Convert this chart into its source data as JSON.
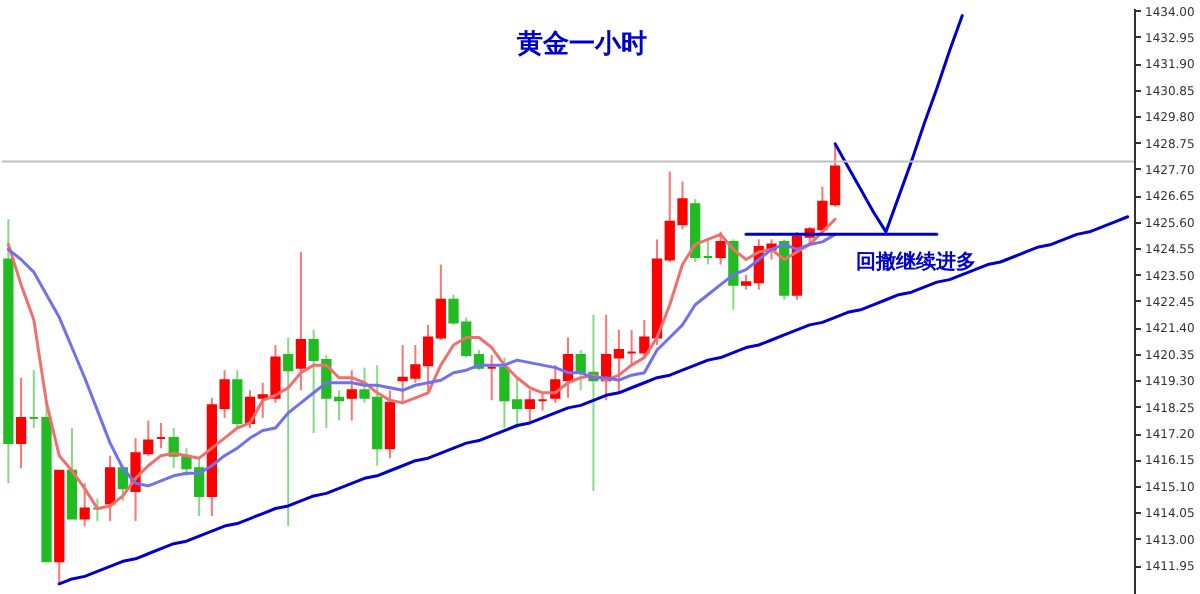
{
  "chart_data": {
    "type": "candlestick",
    "title": "黄金一小时",
    "annotations": [
      "回撤继续进多"
    ],
    "categories": [
      null,
      null,
      null,
      null,
      null,
      null,
      null,
      null,
      null,
      null,
      null,
      null,
      null,
      null,
      null,
      null,
      null,
      null,
      null,
      null,
      null,
      null,
      null,
      null,
      null,
      null,
      null,
      null,
      null,
      null,
      null,
      null,
      null,
      null,
      null,
      null,
      null,
      null,
      null,
      null,
      null,
      null,
      null,
      null,
      null,
      null,
      null,
      null,
      null,
      null,
      null,
      null,
      null,
      null,
      null,
      null,
      null,
      null,
      null,
      null,
      null,
      null,
      null,
      null,
      null,
      null,
      null,
      null,
      null,
      null,
      null,
      null,
      null,
      null,
      null,
      null,
      null,
      null,
      null,
      null,
      null,
      null,
      null,
      null,
      null,
      null,
      null,
      null,
      null
    ],
    "ohlc": [
      [
        1424.1,
        1425.7,
        1415.2,
        1416.8
      ],
      [
        1416.8,
        1419.4,
        1415.8,
        1417.8
      ],
      [
        1417.8,
        1419.7,
        1417.4,
        1417.8
      ],
      [
        1417.8,
        1418.4,
        1412.1,
        1412.1
      ],
      [
        1412.1,
        1415.7,
        1411.2,
        1415.7
      ],
      [
        1415.7,
        1417.4,
        1413.8,
        1413.8
      ],
      [
        1413.8,
        1415.2,
        1413.5,
        1414.2
      ],
      [
        1414.2,
        1414.6,
        1413.7,
        1414.2
      ],
      [
        1414.4,
        1416.3,
        1413.7,
        1415.8
      ],
      [
        1415.8,
        1415.9,
        1414.5,
        1415.0
      ],
      [
        1414.9,
        1417.0,
        1413.7,
        1416.4
      ],
      [
        1416.4,
        1417.7,
        1416.3,
        1416.9
      ],
      [
        1417.0,
        1417.6,
        1416.6,
        1417.0
      ],
      [
        1417.0,
        1417.4,
        1415.8,
        1416.3
      ],
      [
        1416.3,
        1416.6,
        1415.5,
        1415.8
      ],
      [
        1415.8,
        1416.2,
        1413.9,
        1414.7
      ],
      [
        1414.7,
        1418.6,
        1413.9,
        1418.3
      ],
      [
        1418.2,
        1419.7,
        1417.8,
        1419.3
      ],
      [
        1419.3,
        1419.7,
        1417.4,
        1417.6
      ],
      [
        1417.6,
        1418.9,
        1417.4,
        1418.6
      ],
      [
        1418.6,
        1419.2,
        1417.8,
        1418.7
      ],
      [
        1418.6,
        1420.7,
        1418.4,
        1420.2
      ],
      [
        1420.3,
        1421.0,
        1413.5,
        1419.7
      ],
      [
        1419.8,
        1424.4,
        1418.9,
        1420.9
      ],
      [
        1420.9,
        1421.3,
        1417.2,
        1420.1
      ],
      [
        1420.1,
        1420.3,
        1417.4,
        1418.6
      ],
      [
        1418.6,
        1418.9,
        1417.7,
        1418.5
      ],
      [
        1418.6,
        1419.7,
        1417.7,
        1418.9
      ],
      [
        1418.9,
        1419.8,
        1418.4,
        1418.6
      ],
      [
        1418.6,
        1419.9,
        1415.9,
        1416.6
      ],
      [
        1416.6,
        1418.9,
        1416.2,
        1418.4
      ],
      [
        1419.3,
        1420.7,
        1418.4,
        1419.4
      ],
      [
        1419.4,
        1420.7,
        1419.2,
        1419.9
      ],
      [
        1419.9,
        1421.5,
        1418.9,
        1421.0
      ],
      [
        1421.0,
        1423.9,
        1420.9,
        1422.5
      ],
      [
        1422.5,
        1422.7,
        1421.5,
        1421.6
      ],
      [
        1421.6,
        1421.8,
        1420.2,
        1420.3
      ],
      [
        1420.3,
        1420.5,
        1419.7,
        1419.8
      ],
      [
        1419.8,
        1420.3,
        1418.5,
        1419.8
      ],
      [
        1419.8,
        1420.2,
        1417.4,
        1418.5
      ],
      [
        1418.5,
        1419.4,
        1417.4,
        1418.2
      ],
      [
        1418.2,
        1418.9,
        1417.6,
        1418.5
      ],
      [
        1418.5,
        1418.8,
        1418.1,
        1418.5
      ],
      [
        1418.6,
        1419.9,
        1418.4,
        1419.3
      ],
      [
        1419.3,
        1421.0,
        1418.6,
        1420.3
      ],
      [
        1420.3,
        1420.5,
        1418.9,
        1419.6
      ],
      [
        1419.6,
        1421.9,
        1414.9,
        1419.3
      ],
      [
        1419.3,
        1421.9,
        1418.5,
        1420.3
      ],
      [
        1420.2,
        1421.3,
        1418.8,
        1420.5
      ],
      [
        1420.4,
        1421.3,
        1419.9,
        1420.4
      ],
      [
        1420.4,
        1421.7,
        1420.2,
        1421.0
      ],
      [
        1421.0,
        1424.9,
        1420.7,
        1424.1
      ],
      [
        1424.1,
        1427.6,
        1424.0,
        1425.6
      ],
      [
        1425.5,
        1427.2,
        1425.3,
        1426.5
      ],
      [
        1426.3,
        1426.5,
        1424.0,
        1424.2
      ],
      [
        1424.2,
        1424.9,
        1423.9,
        1424.2
      ],
      [
        1424.2,
        1425.2,
        1423.9,
        1424.8
      ],
      [
        1424.8,
        1424.9,
        1422.1,
        1423.1
      ],
      [
        1423.1,
        1423.5,
        1422.9,
        1423.2
      ],
      [
        1423.2,
        1424.9,
        1422.9,
        1424.6
      ],
      [
        1424.5,
        1424.9,
        1424.1,
        1424.7
      ],
      [
        1424.8,
        1424.9,
        1422.5,
        1422.7
      ],
      [
        1422.7,
        1425.2,
        1422.5,
        1425.0
      ],
      [
        1425.0,
        1425.4,
        1424.7,
        1425.3
      ],
      [
        1425.3,
        1427.0,
        1425.1,
        1426.4
      ],
      [
        1426.3,
        1428.7,
        1426.2,
        1427.8
      ],
      null,
      null,
      null,
      null,
      null,
      null,
      null,
      null,
      null,
      null,
      null,
      null,
      null,
      null,
      null,
      null,
      null,
      null,
      null,
      null,
      null,
      null,
      null
    ],
    "colors": [
      "#22bb22",
      "#ff0000",
      "#22bb22",
      "#22bb22",
      "#ff0000",
      "#22bb22",
      "#ff0000",
      "#22bb22",
      "#ff0000",
      "#22bb22",
      "#ff0000",
      "#ff0000",
      "#ff0000",
      "#22bb22",
      "#22bb22",
      "#22bb22",
      "#ff0000",
      "#ff0000",
      "#22bb22",
      "#ff0000",
      "#ff0000",
      "#ff0000",
      "#22bb22",
      "#ff0000",
      "#22bb22",
      "#22bb22",
      "#22bb22",
      "#ff0000",
      "#22bb22",
      "#22bb22",
      "#ff0000",
      "#ff0000",
      "#ff0000",
      "#ff0000",
      "#ff0000",
      "#22bb22",
      "#22bb22",
      "#22bb22",
      "#ff0000",
      "#22bb22",
      "#22bb22",
      "#ff0000",
      "#ff0000",
      "#ff0000",
      "#ff0000",
      "#22bb22",
      "#22bb22",
      "#ff0000",
      "#ff0000",
      "#ff0000",
      "#ff0000",
      "#ff0000",
      "#ff0000",
      "#ff0000",
      "#22bb22",
      "#22bb22",
      "#ff0000",
      "#22bb22",
      "#ff0000",
      "#ff0000",
      "#ff0000",
      "#22bb22",
      "#ff0000",
      "#ff0000",
      "#ff0000",
      "#ff0000",
      null,
      null,
      null,
      null,
      null,
      null,
      null,
      null,
      null,
      null,
      null,
      null,
      null,
      null,
      null,
      null,
      null,
      null,
      null,
      null,
      null,
      null,
      null
    ],
    "series": [
      {
        "type": "line",
        "color": "#f07070",
        "values": [
          1424.7,
          1423.1,
          1421.7,
          1418.4,
          1416.3,
          1415.7,
          1415.0,
          1414.2,
          1414.3,
          1414.7,
          1415.4,
          1415.9,
          1416.3,
          1416.4,
          1416.3,
          1416.2,
          1416.6,
          1417.0,
          1417.4,
          1417.6,
          1418.5,
          1418.7,
          1419.0,
          1419.6,
          1419.9,
          1419.9,
          1419.4,
          1419.4,
          1419.2,
          1418.8,
          1418.5,
          1418.4,
          1418.6,
          1418.8,
          1419.9,
          1420.7,
          1421.0,
          1421.0,
          1420.6,
          1419.9,
          1419.4,
          1419.0,
          1418.8,
          1418.8,
          1419.2,
          1419.4,
          1419.5,
          1419.3,
          1419.5,
          1419.9,
          1420.2,
          1421.0,
          1422.3,
          1423.9,
          1424.7,
          1424.9,
          1425.1,
          1424.5,
          1424.1,
          1424.4,
          1424.5,
          1424.1,
          1424.4,
          1424.7,
          1425.2,
          1425.7,
          null,
          null,
          null,
          null,
          null,
          null,
          null,
          null,
          null,
          null,
          null,
          null,
          null,
          null,
          null,
          null,
          null,
          null,
          null,
          null,
          null,
          null,
          null
        ]
      },
      {
        "type": "line",
        "color": "#7070f0",
        "values": [
          1424.5,
          1424.1,
          1423.6,
          1422.7,
          1421.8,
          1420.6,
          1419.4,
          1418.1,
          1416.8,
          1415.8,
          1415.2,
          1415.1,
          1415.3,
          1415.5,
          1415.6,
          1415.6,
          1415.9,
          1416.3,
          1416.6,
          1417.0,
          1417.3,
          1417.4,
          1418.0,
          1418.4,
          1418.8,
          1419.2,
          1419.2,
          1419.2,
          1419.1,
          1419.1,
          1419.0,
          1418.9,
          1419.1,
          1419.2,
          1419.3,
          1419.6,
          1419.7,
          1419.9,
          1419.9,
          1419.9,
          1420.1,
          1420.0,
          1419.9,
          1419.8,
          1419.6,
          1419.6,
          1419.4,
          1419.4,
          1419.3,
          1419.5,
          1419.6,
          1420.5,
          1421.0,
          1421.5,
          1422.3,
          1422.7,
          1423.1,
          1423.5,
          1423.7,
          1424.1,
          1424.5,
          1424.7,
          1424.5,
          1424.7,
          1424.8,
          1425.1,
          null,
          null,
          null,
          null,
          null,
          null,
          null,
          null,
          null,
          null,
          null,
          null,
          null,
          null,
          null,
          null,
          null,
          null,
          null,
          null,
          null,
          null,
          null
        ]
      },
      {
        "type": "line",
        "color": "#0000cc",
        "values": [
          null,
          null,
          null,
          null,
          1411.2,
          1411.4,
          1411.5,
          1411.7,
          1411.9,
          1412.1,
          1412.2,
          1412.4,
          1412.6,
          1412.8,
          1412.9,
          1413.1,
          1413.3,
          1413.5,
          1413.6,
          1413.8,
          1414.0,
          1414.2,
          1414.3,
          1414.5,
          1414.7,
          1414.8,
          1415.0,
          1415.2,
          1415.4,
          1415.5,
          1415.7,
          1415.9,
          1416.1,
          1416.2,
          1416.4,
          1416.6,
          1416.8,
          1416.9,
          1417.1,
          1417.3,
          1417.5,
          1417.6,
          1417.8,
          1418.0,
          1418.2,
          1418.3,
          1418.5,
          1418.7,
          1418.8,
          1419.0,
          1419.2,
          1419.4,
          1419.5,
          1419.7,
          1419.9,
          1420.1,
          1420.2,
          1420.4,
          1420.6,
          1420.7,
          1420.9,
          1421.1,
          1421.3,
          1421.5,
          1421.6,
          1421.8,
          1422.0,
          1422.1,
          1422.3,
          1422.5,
          1422.7,
          1422.8,
          1423.0,
          1423.2,
          1423.3,
          1423.5,
          1423.7,
          1423.9,
          1424.0,
          1424.2,
          1424.4,
          1424.6,
          1424.7,
          1424.9,
          1425.1,
          1425.2,
          1425.4,
          1425.6,
          1425.8
        ]
      },
      {
        "type": "line",
        "color": "#0000cc",
        "values": [
          null,
          null,
          null,
          null,
          null,
          null,
          null,
          null,
          null,
          null,
          null,
          null,
          null,
          null,
          null,
          null,
          null,
          null,
          null,
          null,
          null,
          null,
          null,
          null,
          null,
          null,
          null,
          null,
          null,
          null,
          null,
          null,
          null,
          null,
          null,
          null,
          null,
          null,
          null,
          null,
          null,
          null,
          null,
          null,
          null,
          null,
          null,
          null,
          null,
          null,
          null,
          null,
          null,
          null,
          null,
          null,
          null,
          null,
          1425.1,
          1425.1,
          1425.1,
          1425.1,
          1425.1,
          1425.1,
          1425.1,
          1425.1,
          1425.1,
          1425.1,
          1425.1,
          1425.1,
          1425.1,
          1425.1,
          1425.1,
          1425.1,
          null,
          null,
          null,
          null,
          null,
          null,
          null,
          null,
          null,
          null,
          null,
          null,
          null,
          null,
          null
        ]
      },
      {
        "type": "line",
        "color": "#0000cc",
        "values": [
          null,
          null,
          null,
          null,
          null,
          null,
          null,
          null,
          null,
          null,
          null,
          null,
          null,
          null,
          null,
          null,
          null,
          null,
          null,
          null,
          null,
          null,
          null,
          null,
          null,
          null,
          null,
          null,
          null,
          null,
          null,
          null,
          null,
          null,
          null,
          null,
          null,
          null,
          null,
          null,
          null,
          null,
          null,
          null,
          null,
          null,
          null,
          null,
          null,
          null,
          null,
          null,
          null,
          null,
          null,
          null,
          null,
          null,
          null,
          null,
          null,
          null,
          null,
          null,
          null,
          1428.7,
          1427.8,
          1426.9,
          1426.0,
          1425.2,
          1426.6,
          1428.0,
          1429.5,
          1430.9,
          1432.4,
          1433.8,
          null,
          null,
          null,
          null,
          null,
          null,
          null,
          null,
          null,
          null,
          null,
          null,
          null
        ]
      }
    ],
    "ref_lines": [
      {
        "axis": "y",
        "value": 1428.0,
        "color": "#c0c0c0"
      }
    ],
    "ylim": [
      1410.8,
      1434.1
    ],
    "yticks": [
      {
        "value": 1434.0,
        "label": "1434.00"
      },
      {
        "value": 1432.95,
        "label": "1432.95"
      },
      {
        "value": 1431.9,
        "label": "1431.90"
      },
      {
        "value": 1430.85,
        "label": "1430.85"
      },
      {
        "value": 1429.8,
        "label": "1429.80"
      },
      {
        "value": 1428.75,
        "label": "1428.75"
      },
      {
        "value": 1427.7,
        "label": "1427.70"
      },
      {
        "value": 1426.65,
        "label": "1426.65"
      },
      {
        "value": 1425.6,
        "label": "1425.60"
      },
      {
        "value": 1424.55,
        "label": "1424.55"
      },
      {
        "value": 1423.5,
        "label": "1423.50"
      },
      {
        "value": 1422.45,
        "label": "1422.45"
      },
      {
        "value": 1421.4,
        "label": "1421.40"
      },
      {
        "value": 1420.35,
        "label": "1420.35"
      },
      {
        "value": 1419.3,
        "label": "1419.30"
      },
      {
        "value": 1418.25,
        "label": "1418.25"
      },
      {
        "value": 1417.2,
        "label": "1417.20"
      },
      {
        "value": 1416.15,
        "label": "1416.15"
      },
      {
        "value": 1415.1,
        "label": "1415.10"
      },
      {
        "value": 1414.05,
        "label": "1414.05"
      },
      {
        "value": 1413.0,
        "label": "1413.00"
      },
      {
        "value": 1411.95,
        "label": "1411.95"
      }
    ],
    "tick_labels": "y"
  }
}
